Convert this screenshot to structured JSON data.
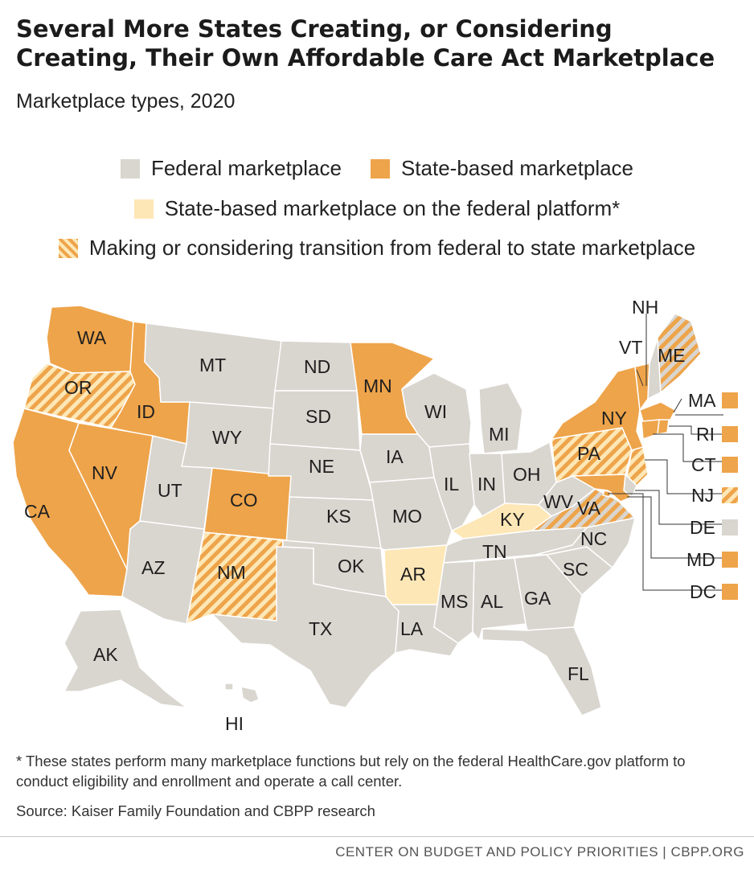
{
  "title": "Several More States Creating, or Considering Creating, Their Own Affordable Care Act Marketplace",
  "subtitle": "Marketplace types, 2020",
  "legend": {
    "federal": "Federal marketplace",
    "state": "State-based marketplace",
    "platform": "State-based marketplace on the federal platform*",
    "transition": "Making or considering transition from federal to state marketplace"
  },
  "colors": {
    "federal": "#d9d5cf",
    "state": "#eea44a",
    "platform": "#fde7b6",
    "transition_stripe": "#eea44a"
  },
  "states": {
    "WA": "WA",
    "OR": "OR",
    "CA": "CA",
    "ID": "ID",
    "NV": "NV",
    "MT": "MT",
    "WY": "WY",
    "UT": "UT",
    "AZ": "AZ",
    "CO": "CO",
    "NM": "NM",
    "ND": "ND",
    "SD": "SD",
    "NE": "NE",
    "KS": "KS",
    "OK": "OK",
    "TX": "TX",
    "MN": "MN",
    "IA": "IA",
    "MO": "MO",
    "AR": "AR",
    "LA": "LA",
    "WI": "WI",
    "IL": "IL",
    "MI": "MI",
    "IN": "IN",
    "OH": "OH",
    "KY": "KY",
    "TN": "TN",
    "MS": "MS",
    "AL": "AL",
    "GA": "GA",
    "FL": "FL",
    "SC": "SC",
    "NC": "NC",
    "VA": "VA",
    "WV": "WV",
    "PA": "PA",
    "NY": "NY",
    "VT": "VT",
    "NH": "NH",
    "ME": "ME",
    "AK": "AK",
    "HI": "HI"
  },
  "callouts": {
    "MA": "MA",
    "RI": "RI",
    "CT": "CT",
    "NJ": "NJ",
    "DE": "DE",
    "MD": "MD",
    "DC": "DC"
  },
  "footnote": "* These states perform many marketplace functions but rely on the federal HealthCare.gov platform to conduct eligibility and enrollment and operate a call center.",
  "source": "Source: Kaiser Family Foundation and CBPP research",
  "credit": "CENTER ON BUDGET AND POLICY PRIORITIES | CBPP.ORG"
}
